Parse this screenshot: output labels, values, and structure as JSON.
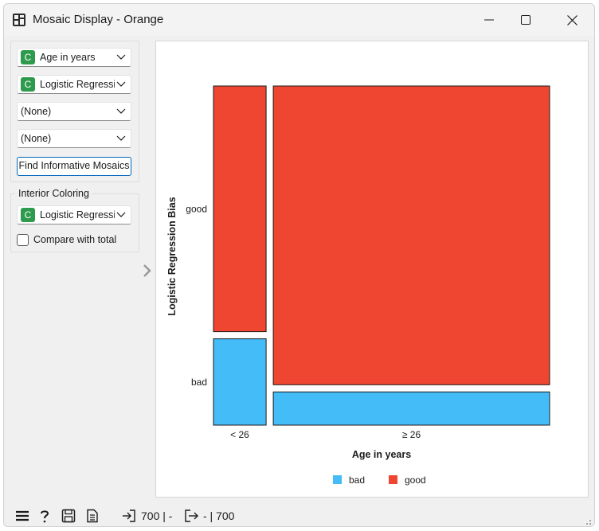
{
  "window": {
    "title": "Mosaic Display - Orange",
    "controls": [
      "minimize-icon",
      "maximize-icon",
      "close-icon"
    ]
  },
  "sidebar": {
    "variables": [
      {
        "icon": "C",
        "label": "Age in years"
      },
      {
        "icon": "C",
        "label": "Logistic Regression Bias"
      },
      {
        "icon": "",
        "label": "(None)"
      },
      {
        "icon": "",
        "label": "(None)"
      }
    ],
    "find_button": "Find Informative Mosaics",
    "interior_coloring": {
      "title": "Interior Coloring",
      "variable": {
        "icon": "C",
        "label": "Logistic Regression Bias"
      },
      "compare_label": "Compare with total",
      "compare_checked": false
    }
  },
  "chart_data": {
    "type": "mosaic",
    "xlabel": "Age in years",
    "ylabel": "Logistic Regression Bias",
    "x_categories": [
      "< 26",
      "≥ 26"
    ],
    "y_categories": [
      "good",
      "bad"
    ],
    "x_fractions": [
      0.16,
      0.84
    ],
    "cells": [
      {
        "x": "< 26",
        "y": "good",
        "fraction": 0.74,
        "color": "#ee4630"
      },
      {
        "x": "< 26",
        "y": "bad",
        "fraction": 0.26,
        "color": "#44bcf8"
      },
      {
        "x": "≥ 26",
        "y": "good",
        "fraction": 0.9,
        "color": "#ee4630"
      },
      {
        "x": "≥ 26",
        "y": "bad",
        "fraction": 0.1,
        "color": "#44bcf8"
      }
    ],
    "legend": [
      {
        "label": "bad",
        "color": "#44bcf8"
      },
      {
        "label": "good",
        "color": "#ee4630"
      }
    ]
  },
  "statusbar": {
    "input_text": "700 | -",
    "output_text": "- | 700"
  }
}
